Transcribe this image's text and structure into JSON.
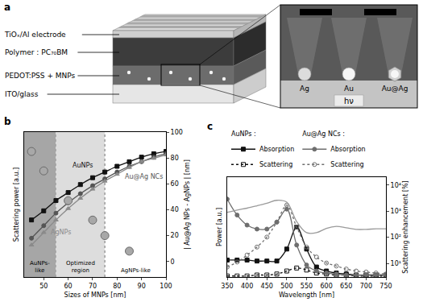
{
  "diagram": {
    "label": "a",
    "layers": [
      "TiOₓ/Al electrode",
      "Polymer : PC₇₀BM",
      "PEDOT:PSS + MNPs",
      "ITO/glass"
    ],
    "inset": {
      "particles": [
        "Ag",
        "Au",
        "Au@Ag"
      ],
      "light": "hν"
    }
  },
  "chart_data": [
    {
      "label": "b",
      "type": "line",
      "xlabel": "Sizes of MNPs [nm]",
      "ylabel": "Scattering power [a.u.]",
      "y2label": "| Au@Ag NPs - AgNPs | [nm]",
      "xlim": [
        42,
        100
      ],
      "xticks": [
        50,
        60,
        70,
        80,
        90,
        100
      ],
      "ylim": [
        -12,
        115
      ],
      "yticks": [],
      "y2lim": [
        -12,
        100
      ],
      "y2ticks": [
        0,
        20,
        40,
        60,
        80,
        100
      ],
      "grid": false,
      "x": [
        45,
        50,
        55,
        60,
        65,
        70,
        75,
        80,
        85,
        90,
        95,
        100
      ],
      "series": [
        {
          "name": "AuNPs",
          "color": "#111111",
          "marker": "square",
          "line_style": "solid",
          "values": [
            38,
            46,
            55,
            62,
            69,
            75,
            80,
            85,
            89,
            93,
            96,
            98
          ]
        },
        {
          "name": "Au@Ag NCs",
          "color": "#555555",
          "marker": "circle",
          "line_style": "solid",
          "values": [
            22,
            33,
            44,
            53,
            61,
            68,
            74,
            80,
            85,
            89,
            93,
            96
          ]
        },
        {
          "name": "AgNPs",
          "color": "#8a8a8a",
          "marker": "triangle-up",
          "line_style": "solid",
          "values": [
            16,
            27,
            38,
            48,
            57,
            65,
            72,
            78,
            84,
            89,
            92,
            95
          ]
        },
        {
          "type": "scatter",
          "axis": "y2",
          "color": "#a8a8a8",
          "marker": "circle",
          "x": [
            45,
            50,
            60,
            70,
            75,
            85
          ],
          "values": [
            85,
            70,
            47,
            32,
            20,
            8
          ]
        }
      ],
      "regions": [
        {
          "label": "AuNPs-like",
          "x0": 42,
          "x1": 55,
          "color": "#a6a6a6"
        },
        {
          "label": "Optimized region",
          "x0": 55,
          "x1": 75,
          "color": "#dddddd"
        },
        {
          "label": "AgNPs-like",
          "x0": 75,
          "x1": 100
        }
      ]
    },
    {
      "label": "c",
      "type": "line",
      "xlabel": "Wavelength [nm]",
      "ylabel": "Power [a.u.]",
      "y2label": "Scattering enhancement [%]",
      "xlim": [
        350,
        750
      ],
      "xticks": [
        350,
        400,
        450,
        500,
        550,
        600,
        650,
        700,
        750
      ],
      "ylim": [
        0,
        100
      ],
      "yticks": [],
      "y2lim": [
        3,
        20000
      ],
      "y2ticks": [
        {
          "value": 10,
          "label": "10¹"
        },
        {
          "value": 100,
          "label": "10²"
        },
        {
          "value": 1000,
          "label": "10³"
        },
        {
          "value": 10000,
          "label": "10⁴"
        }
      ],
      "log": "y",
      "grid": false,
      "legend": "top",
      "x": [
        350,
        375,
        400,
        425,
        450,
        475,
        500,
        525,
        550,
        575,
        600,
        625,
        650,
        675,
        700,
        725,
        750
      ],
      "series": [
        {
          "group": "AuNPs :",
          "name": "Absorption",
          "color": "#111111",
          "marker": "square",
          "line_style": "solid",
          "values": [
            17,
            17,
            17,
            16,
            16,
            16,
            28,
            50,
            28,
            10,
            6,
            4,
            3,
            2,
            2,
            2,
            2
          ]
        },
        {
          "group": "AuNPs :",
          "name": "Scattering",
          "color": "#111111",
          "marker": "square-open",
          "line_style": "dot",
          "values": [
            1,
            1,
            1,
            2,
            2,
            3,
            6,
            9,
            7,
            4,
            3,
            2,
            2,
            1,
            1,
            1,
            1
          ]
        },
        {
          "group": "Au@Ag NCs :",
          "name": "Absorption",
          "color": "#6e6e6e",
          "marker": "circle",
          "line_style": "solid",
          "values": [
            78,
            62,
            52,
            48,
            48,
            55,
            68,
            32,
            12,
            6,
            4,
            3,
            2,
            2,
            2,
            2,
            2
          ]
        },
        {
          "group": "Au@Ag NCs :",
          "name": "Scattering",
          "color": "#6e6e6e",
          "marker": "circle-open",
          "line_style": "dot",
          "values": [
            10,
            15,
            22,
            30,
            40,
            55,
            72,
            50,
            30,
            20,
            14,
            11,
            8,
            6,
            5,
            4,
            3
          ]
        },
        {
          "axis": "y2",
          "color": "#9a9a9a",
          "marker": "none",
          "line_style": "solid",
          "values": [
            900,
            1100,
            1300,
            1600,
            2000,
            2600,
            2200,
            400,
            150,
            150,
            220,
            260,
            230,
            200,
            200,
            210,
            210
          ]
        }
      ]
    }
  ]
}
